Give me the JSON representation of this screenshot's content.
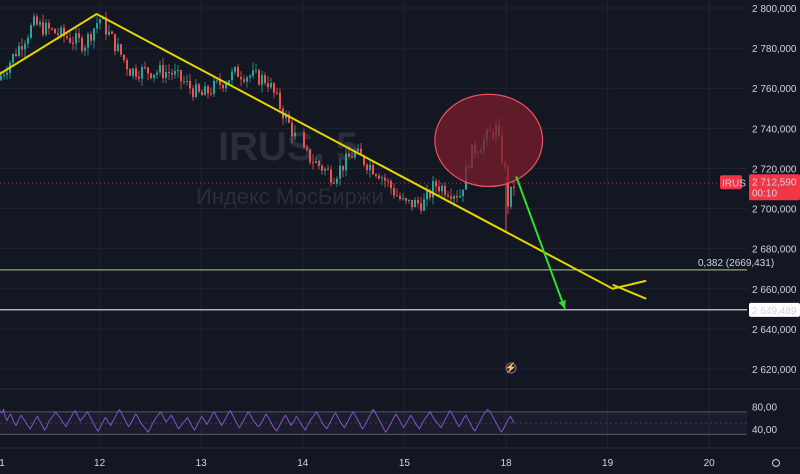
{
  "chart_data": [
    {
      "type": "candlestick",
      "title": "",
      "watermark": {
        "symbol": "IRUS, 5",
        "name": "Индекс МосБиржи"
      },
      "x_ticks": [
        "1",
        "12",
        "13",
        "14",
        "15",
        "18",
        "19",
        "20"
      ],
      "y_ticks": [
        "2 800,000",
        "2 780,000",
        "2 760,000",
        "2 740,000",
        "2 720,000",
        "2 700,000",
        "2 680,000",
        "2 660,000",
        "2 640,000",
        "2 620,000"
      ],
      "ylim": [
        2612,
        2804
      ],
      "price_badge": {
        "symbol": "IRUS",
        "price": "2 712,590",
        "countdown": "00:10",
        "color": "#f23645"
      },
      "level_badge": {
        "price": "2 649,489"
      },
      "fib_label": "0,382 (2669,431)",
      "horizontal_levels": [
        {
          "value": 2669.431,
          "color": "#8fa884"
        },
        {
          "value": 2649.489,
          "color": "#e0e3eb"
        }
      ],
      "price_polyline": [
        [
          0,
          2764
        ],
        [
          0.35,
          2792
        ],
        [
          0.85,
          2782
        ],
        [
          1.0,
          2795
        ],
        [
          1.3,
          2769
        ],
        [
          1.7,
          2768
        ],
        [
          2.0,
          2756
        ],
        [
          2.35,
          2768
        ],
        [
          2.65,
          2764
        ],
        [
          3.0,
          2728
        ],
        [
          3.3,
          2716
        ],
        [
          3.5,
          2728
        ],
        [
          3.75,
          2718
        ],
        [
          4.0,
          2702
        ],
        [
          4.2,
          2703
        ],
        [
          4.3,
          2712
        ],
        [
          4.55,
          2707
        ],
        [
          4.65,
          2727
        ],
        [
          4.9,
          2740
        ],
        [
          5.0,
          2716
        ],
        [
          5.0,
          2700
        ],
        [
          5.08,
          2712
        ]
      ],
      "trendline": {
        "points": [
          [
            -0.05,
            2765
          ],
          [
            0.97,
            2797
          ],
          [
            6.05,
            2660
          ],
          [
            6.38,
            2664
          ]
        ],
        "color": "#e6d400"
      },
      "trendline_extension": {
        "points": [
          [
            6.05,
            2662
          ],
          [
            6.38,
            2655
          ]
        ],
        "color": "#e6d400"
      },
      "highlight_ellipse": {
        "center": [
          4.83,
          2734
        ],
        "rx_days": 0.53,
        "ry_value": 23,
        "fill": "#7a1d2b",
        "stroke": "#f05060"
      },
      "arrow": {
        "from": [
          5.1,
          2716
        ],
        "to": [
          5.58,
          2650
        ],
        "color": "#2fe02f"
      },
      "event_marker": "⚡",
      "price_line": {
        "value": 2712.59,
        "color": "#f23645"
      },
      "colors": {
        "up": "#26a69a",
        "down": "#ef5350",
        "wick": "#8c8f99"
      }
    },
    {
      "type": "line",
      "title": "",
      "y_ticks": [
        "80,00",
        "40,00"
      ],
      "ylim": [
        20,
        100
      ],
      "band": [
        70,
        30
      ],
      "series": [
        {
          "values": [
            72,
            68,
            74,
            60,
            55,
            62,
            66,
            58,
            50,
            46,
            52,
            60,
            64,
            58,
            54,
            48,
            44,
            40,
            46,
            52,
            58,
            62,
            55,
            50,
            44,
            38,
            42,
            50,
            56,
            60,
            64,
            70,
            66,
            62,
            58,
            52,
            48,
            44,
            50,
            56,
            62,
            68,
            72,
            66,
            60,
            54,
            58,
            62,
            66,
            70,
            64,
            58,
            52,
            46,
            40,
            36,
            42,
            48,
            54,
            60,
            56,
            50,
            46,
            52,
            58,
            64,
            70,
            74,
            68,
            62,
            56,
            50,
            44,
            48,
            54,
            60,
            66,
            62,
            56,
            50,
            46,
            42,
            38,
            34,
            40,
            46,
            52,
            58,
            62,
            66,
            70,
            64,
            58,
            52,
            56,
            60,
            64,
            58,
            52,
            46,
            40,
            44,
            48,
            52,
            56,
            60,
            54,
            48,
            42,
            38,
            44,
            50,
            56,
            62,
            58,
            52,
            48,
            54,
            60,
            66,
            70,
            64,
            58,
            52,
            46,
            50,
            56,
            62,
            68,
            72,
            66,
            60,
            54,
            48,
            42,
            46,
            52,
            58,
            64,
            70,
            66,
            60,
            54,
            50,
            46,
            44,
            48,
            54,
            60,
            66,
            62,
            56,
            50,
            44,
            40,
            36,
            42,
            48,
            54,
            60,
            64,
            58,
            52,
            46,
            50,
            56,
            62,
            58,
            52,
            46,
            42,
            38,
            44,
            50,
            56,
            60,
            64,
            70,
            66,
            60,
            54,
            48,
            44,
            40,
            46,
            52,
            58,
            64,
            68,
            62,
            56,
            50,
            46,
            42,
            48,
            54,
            60,
            66,
            70,
            64,
            58,
            52,
            46,
            40,
            44,
            50,
            56,
            62,
            68,
            74,
            70,
            64,
            58,
            52,
            46,
            40,
            34,
            38,
            44,
            50,
            56,
            62,
            66,
            60,
            54,
            48,
            42,
            46,
            52,
            58,
            64,
            60,
            54,
            48,
            44,
            40,
            46,
            52,
            58,
            62,
            66,
            70,
            64,
            58,
            54,
            50,
            46,
            42,
            48,
            54,
            60,
            66,
            72,
            68,
            62,
            56,
            50,
            44,
            48,
            54,
            60,
            64,
            58,
            52,
            46,
            40,
            36,
            42,
            48,
            54,
            60,
            66,
            70,
            74,
            72,
            68,
            62,
            56,
            50,
            44,
            38,
            34,
            40,
            46,
            52,
            58,
            62,
            56,
            50
          ]
        }
      ]
    }
  ]
}
